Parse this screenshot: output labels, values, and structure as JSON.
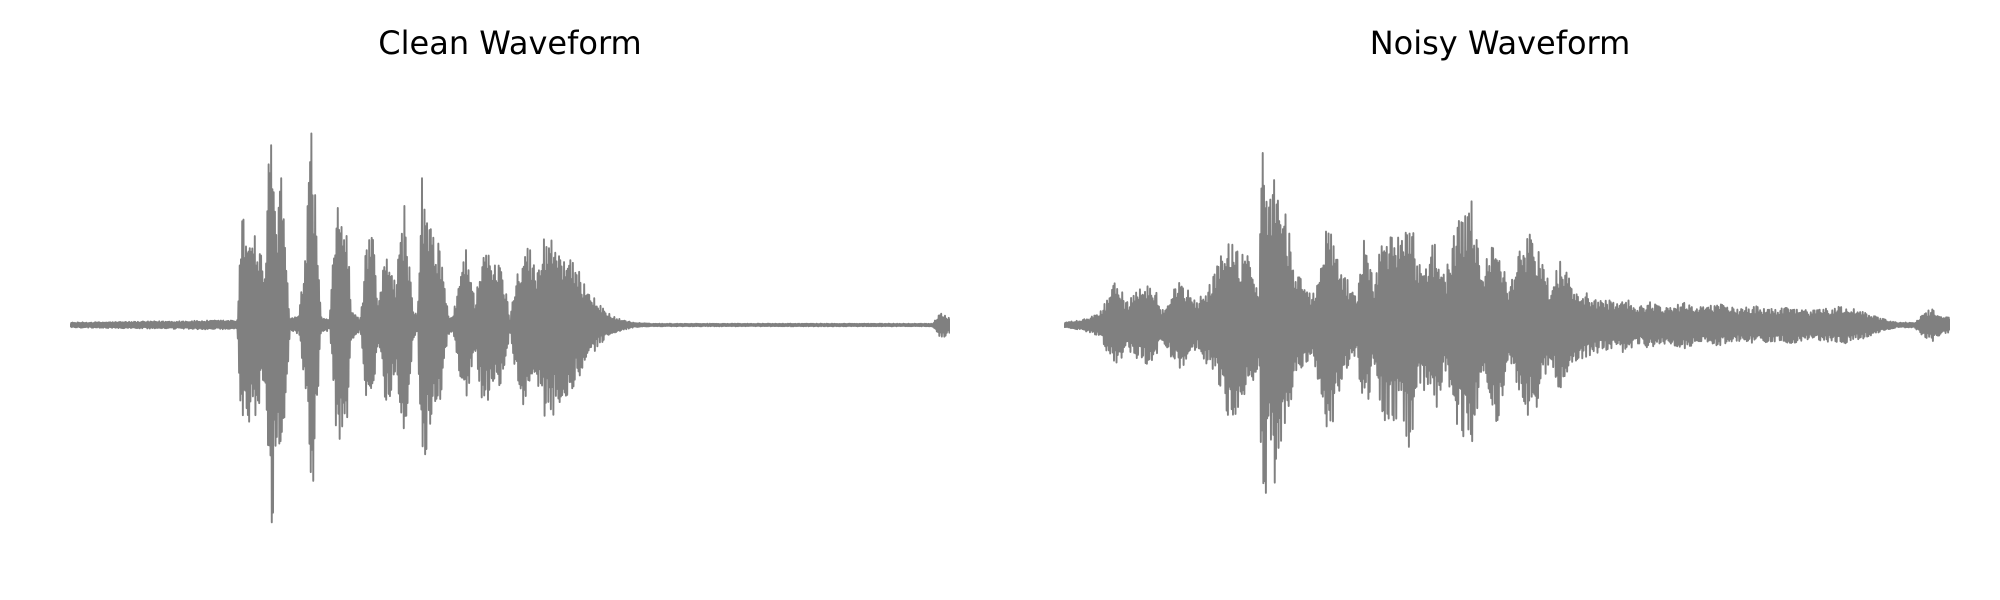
{
  "chart_data": [
    {
      "type": "line",
      "title": "Clean Waveform",
      "axes_visible": false,
      "line_color": "#808080",
      "ylim": [
        -1,
        1
      ],
      "x_unit": "normalized time",
      "envelope": {
        "x": [
          0.0,
          0.19,
          0.195,
          0.21,
          0.222,
          0.228,
          0.236,
          0.24,
          0.25,
          0.26,
          0.267,
          0.275,
          0.285,
          0.29,
          0.295,
          0.302,
          0.31,
          0.315,
          0.32,
          0.33,
          0.338,
          0.345,
          0.35,
          0.36,
          0.37,
          0.38,
          0.39,
          0.395,
          0.4,
          0.41,
          0.42,
          0.43,
          0.435,
          0.45,
          0.46,
          0.47,
          0.48,
          0.49,
          0.5,
          0.51,
          0.52,
          0.53,
          0.54,
          0.55,
          0.565,
          0.58,
          0.59,
          0.6,
          0.62,
          0.64,
          0.66,
          0.98,
          0.99,
          1.0
        ],
        "amplitude": [
          0.01,
          0.02,
          0.47,
          0.42,
          0.25,
          0.98,
          0.45,
          0.66,
          0.03,
          0.04,
          0.29,
          0.88,
          0.04,
          0.03,
          0.02,
          0.49,
          0.52,
          0.4,
          0.06,
          0.03,
          0.4,
          0.36,
          0.08,
          0.37,
          0.2,
          0.53,
          0.06,
          0.04,
          0.65,
          0.41,
          0.36,
          0.04,
          0.03,
          0.38,
          0.1,
          0.39,
          0.25,
          0.28,
          0.03,
          0.3,
          0.38,
          0.22,
          0.41,
          0.38,
          0.3,
          0.22,
          0.16,
          0.09,
          0.03,
          0.01,
          0.005,
          0.005,
          0.06,
          0.03
        ]
      }
    },
    {
      "type": "line",
      "title": "Noisy Waveform",
      "axes_visible": false,
      "line_color": "#808080",
      "ylim": [
        -1,
        1
      ],
      "x_unit": "normalized time",
      "envelope": {
        "x": [
          0.0,
          0.02,
          0.04,
          0.06,
          0.07,
          0.1,
          0.11,
          0.13,
          0.15,
          0.17,
          0.19,
          0.2,
          0.21,
          0.22,
          0.225,
          0.232,
          0.24,
          0.26,
          0.27,
          0.28,
          0.3,
          0.31,
          0.32,
          0.33,
          0.34,
          0.35,
          0.36,
          0.38,
          0.39,
          0.4,
          0.42,
          0.43,
          0.44,
          0.46,
          0.47,
          0.48,
          0.49,
          0.5,
          0.52,
          0.53,
          0.55,
          0.56,
          0.57,
          0.58,
          0.6,
          0.62,
          0.63,
          0.65,
          0.66,
          0.68,
          0.7,
          0.72,
          0.74,
          0.76,
          0.78,
          0.8,
          0.82,
          0.84,
          0.86,
          0.88,
          0.9,
          0.92,
          0.94,
          0.96,
          0.97,
          0.98,
          0.99,
          1.0
        ],
        "amplitude": [
          0.01,
          0.02,
          0.05,
          0.2,
          0.1,
          0.2,
          0.06,
          0.2,
          0.1,
          0.22,
          0.45,
          0.3,
          0.3,
          0.18,
          0.98,
          0.55,
          0.75,
          0.25,
          0.2,
          0.12,
          0.5,
          0.3,
          0.2,
          0.12,
          0.43,
          0.15,
          0.42,
          0.4,
          0.55,
          0.25,
          0.38,
          0.2,
          0.4,
          0.55,
          0.25,
          0.3,
          0.45,
          0.15,
          0.38,
          0.4,
          0.15,
          0.3,
          0.2,
          0.15,
          0.12,
          0.1,
          0.12,
          0.08,
          0.1,
          0.08,
          0.1,
          0.08,
          0.09,
          0.07,
          0.08,
          0.07,
          0.08,
          0.06,
          0.07,
          0.08,
          0.06,
          0.03,
          0.01,
          0.01,
          0.05,
          0.07,
          0.04,
          0.03
        ]
      }
    }
  ]
}
